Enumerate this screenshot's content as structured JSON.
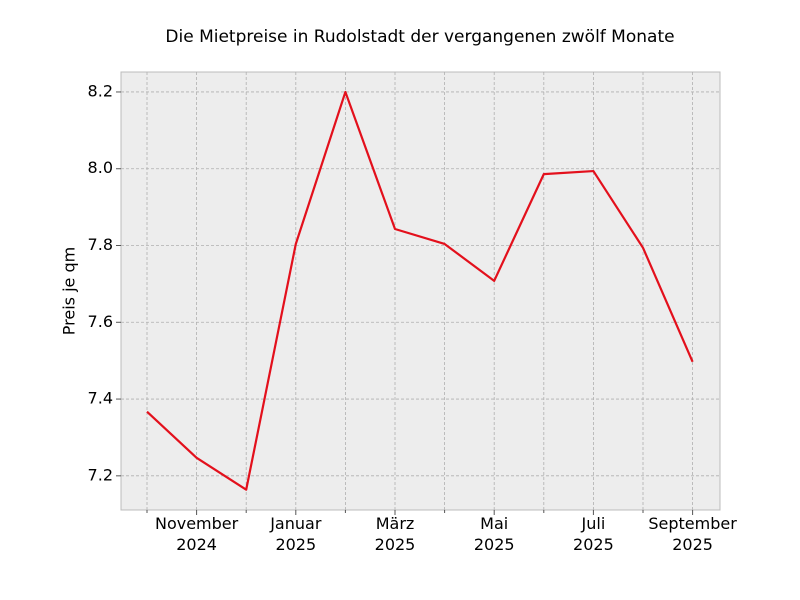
{
  "chart_data": {
    "type": "line",
    "title": "Die Mietpreise in Rudolstadt der vergangenen zwölf Monate",
    "y_label": "Preis je qm",
    "categories": [
      null,
      "November 2024",
      null,
      "Januar 2025",
      null,
      "März 2025",
      null,
      "Mai 2025",
      null,
      "Juli 2025",
      null,
      "September 2025"
    ],
    "series": [
      {
        "color": "#e3101c",
        "values": [
          7.367,
          7.247,
          7.164,
          7.804,
          8.2,
          7.843,
          7.804,
          7.708,
          7.986,
          7.994,
          7.794,
          7.497
        ]
      }
    ],
    "ylim": [
      7.111,
      8.252
    ],
    "yticks": [
      7.2,
      7.4,
      7.6,
      7.8,
      {
        "value": 8,
        "label": "8.0"
      },
      8.2
    ],
    "grid": true
  }
}
